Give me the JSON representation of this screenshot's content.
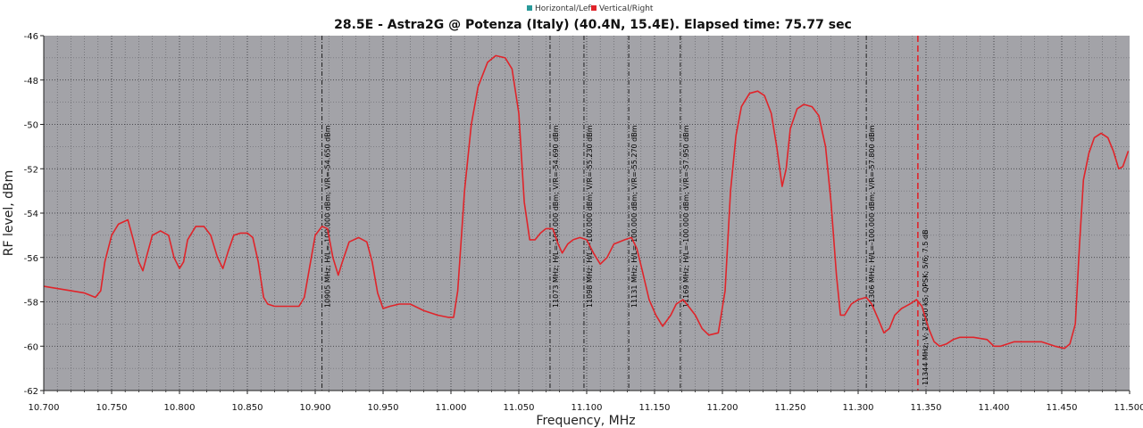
{
  "chart_data": {
    "type": "line",
    "title": "28.5E - Astra2G @ Potenza (Italy) (40.4N, 15.4E). Elapsed time: 75.77 sec",
    "xlabel": "Frequency, MHz",
    "ylabel": "RF level, dBm",
    "xlim": [
      10700,
      11500
    ],
    "ylim": [
      -62,
      -46
    ],
    "x_ticks": [
      "10.700",
      "10.750",
      "10.800",
      "10.850",
      "10.900",
      "10.950",
      "11.000",
      "11.050",
      "11.100",
      "11.150",
      "11.200",
      "11.250",
      "11.300",
      "11.350",
      "11.400",
      "11.450",
      "11.500"
    ],
    "y_ticks": [
      "-46",
      "-48",
      "-50",
      "-52",
      "-54",
      "-56",
      "-58",
      "-60",
      "-62"
    ],
    "grid": true,
    "legend_position": "top-center",
    "legend": [
      {
        "name": "Horizontal/Left",
        "color": "#2a9a9a"
      },
      {
        "name": "Vertical/Right",
        "color": "#e0242a"
      }
    ],
    "plot_background": "#a3a3a8",
    "series": [
      {
        "name": "Vertical/Right",
        "color": "#e0242a",
        "points": [
          [
            10700,
            -57.3
          ],
          [
            10710,
            -57.4
          ],
          [
            10720,
            -57.5
          ],
          [
            10730,
            -57.6
          ],
          [
            10738,
            -57.8
          ],
          [
            10742,
            -57.5
          ],
          [
            10745,
            -56.2
          ],
          [
            10750,
            -55.0
          ],
          [
            10755,
            -54.5
          ],
          [
            10762,
            -54.3
          ],
          [
            10766,
            -55.2
          ],
          [
            10770,
            -56.2
          ],
          [
            10773,
            -56.6
          ],
          [
            10776,
            -55.9
          ],
          [
            10780,
            -55.0
          ],
          [
            10786,
            -54.8
          ],
          [
            10792,
            -55.0
          ],
          [
            10796,
            -56.0
          ],
          [
            10800,
            -56.5
          ],
          [
            10803,
            -56.2
          ],
          [
            10806,
            -55.2
          ],
          [
            10812,
            -54.6
          ],
          [
            10818,
            -54.6
          ],
          [
            10823,
            -55.0
          ],
          [
            10828,
            -56.0
          ],
          [
            10832,
            -56.5
          ],
          [
            10836,
            -55.7
          ],
          [
            10840,
            -55.0
          ],
          [
            10845,
            -54.9
          ],
          [
            10850,
            -54.9
          ],
          [
            10854,
            -55.1
          ],
          [
            10858,
            -56.2
          ],
          [
            10862,
            -57.8
          ],
          [
            10865,
            -58.1
          ],
          [
            10870,
            -58.2
          ],
          [
            10880,
            -58.2
          ],
          [
            10888,
            -58.2
          ],
          [
            10892,
            -57.8
          ],
          [
            10896,
            -56.4
          ],
          [
            10900,
            -55.0
          ],
          [
            10905,
            -54.6
          ],
          [
            10909,
            -54.7
          ],
          [
            10913,
            -56.0
          ],
          [
            10917,
            -56.8
          ],
          [
            10920,
            -56.2
          ],
          [
            10925,
            -55.3
          ],
          [
            10932,
            -55.1
          ],
          [
            10938,
            -55.3
          ],
          [
            10942,
            -56.2
          ],
          [
            10946,
            -57.6
          ],
          [
            10950,
            -58.3
          ],
          [
            10955,
            -58.2
          ],
          [
            10962,
            -58.1
          ],
          [
            10970,
            -58.1
          ],
          [
            10980,
            -58.4
          ],
          [
            10990,
            -58.6
          ],
          [
            10998,
            -58.7
          ],
          [
            11002,
            -58.7
          ],
          [
            11005,
            -57.5
          ],
          [
            11010,
            -53.0
          ],
          [
            11015,
            -50.0
          ],
          [
            11020,
            -48.3
          ],
          [
            11027,
            -47.2
          ],
          [
            11033,
            -46.9
          ],
          [
            11040,
            -47.0
          ],
          [
            11045,
            -47.5
          ],
          [
            11050,
            -49.5
          ],
          [
            11054,
            -53.5
          ],
          [
            11058,
            -55.2
          ],
          [
            11062,
            -55.2
          ],
          [
            11066,
            -54.9
          ],
          [
            11070,
            -54.7
          ],
          [
            11075,
            -54.7
          ],
          [
            11079,
            -55.4
          ],
          [
            11082,
            -55.8
          ],
          [
            11086,
            -55.4
          ],
          [
            11090,
            -55.2
          ],
          [
            11095,
            -55.1
          ],
          [
            11100,
            -55.2
          ],
          [
            11105,
            -55.8
          ],
          [
            11110,
            -56.3
          ],
          [
            11115,
            -56.0
          ],
          [
            11120,
            -55.4
          ],
          [
            11128,
            -55.2
          ],
          [
            11133,
            -55.1
          ],
          [
            11137,
            -55.6
          ],
          [
            11141,
            -56.6
          ],
          [
            11146,
            -57.9
          ],
          [
            11151,
            -58.6
          ],
          [
            11156,
            -59.1
          ],
          [
            11162,
            -58.6
          ],
          [
            11166,
            -58.1
          ],
          [
            11171,
            -57.9
          ],
          [
            11175,
            -58.2
          ],
          [
            11180,
            -58.6
          ],
          [
            11185,
            -59.2
          ],
          [
            11190,
            -59.5
          ],
          [
            11197,
            -59.4
          ],
          [
            11202,
            -57.5
          ],
          [
            11206,
            -53.0
          ],
          [
            11210,
            -50.5
          ],
          [
            11214,
            -49.2
          ],
          [
            11220,
            -48.6
          ],
          [
            11226,
            -48.5
          ],
          [
            11231,
            -48.7
          ],
          [
            11236,
            -49.5
          ],
          [
            11240,
            -51.0
          ],
          [
            11244,
            -52.8
          ],
          [
            11247,
            -52.0
          ],
          [
            11250,
            -50.2
          ],
          [
            11255,
            -49.3
          ],
          [
            11260,
            -49.1
          ],
          [
            11266,
            -49.2
          ],
          [
            11271,
            -49.6
          ],
          [
            11276,
            -51.0
          ],
          [
            11280,
            -53.5
          ],
          [
            11284,
            -56.8
          ],
          [
            11287,
            -58.6
          ],
          [
            11290,
            -58.6
          ],
          [
            11295,
            -58.1
          ],
          [
            11300,
            -57.9
          ],
          [
            11306,
            -57.8
          ],
          [
            11310,
            -58.1
          ],
          [
            11315,
            -58.8
          ],
          [
            11319,
            -59.4
          ],
          [
            11323,
            -59.2
          ],
          [
            11327,
            -58.6
          ],
          [
            11332,
            -58.3
          ],
          [
            11338,
            -58.1
          ],
          [
            11343,
            -57.9
          ],
          [
            11347,
            -58.2
          ],
          [
            11352,
            -59.2
          ],
          [
            11356,
            -59.8
          ],
          [
            11360,
            -60.0
          ],
          [
            11365,
            -59.9
          ],
          [
            11370,
            -59.7
          ],
          [
            11375,
            -59.6
          ],
          [
            11385,
            -59.6
          ],
          [
            11395,
            -59.7
          ],
          [
            11400,
            -60.0
          ],
          [
            11405,
            -60.0
          ],
          [
            11410,
            -59.9
          ],
          [
            11415,
            -59.8
          ],
          [
            11425,
            -59.8
          ],
          [
            11435,
            -59.8
          ],
          [
            11440,
            -59.9
          ],
          [
            11445,
            -60.0
          ],
          [
            11452,
            -60.1
          ],
          [
            11456,
            -59.9
          ],
          [
            11460,
            -59.0
          ],
          [
            11463,
            -55.5
          ],
          [
            11466,
            -52.5
          ],
          [
            11470,
            -51.3
          ],
          [
            11474,
            -50.6
          ],
          [
            11479,
            -50.4
          ],
          [
            11484,
            -50.6
          ],
          [
            11488,
            -51.2
          ],
          [
            11492,
            -52.0
          ],
          [
            11495,
            -51.9
          ],
          [
            11499,
            -51.2
          ]
        ]
      }
    ],
    "markers": [
      {
        "x": 10905,
        "label": "10905 MHz; H/L=-100.000 dBm; V/R=-54.650 dBm"
      },
      {
        "x": 11073,
        "label": "11073 MHz; H/L=-100.000 dBm; V/R=-54.690 dBm"
      },
      {
        "x": 11098,
        "label": "11098 MHz; H/L=-100.000 dBm; V/R=-55.230 dBm"
      },
      {
        "x": 11131,
        "label": "11131 MHz; H/L=-100.000 dBm; V/R=-55.270 dBm"
      },
      {
        "x": 11169,
        "label": "11169 MHz; H/L=-100.000 dBm; V/R=-57.950 dBm"
      },
      {
        "x": 11306,
        "label": "11306 MHz; H/L=-100.000 dBm; V/R=-57.800 dBm"
      }
    ],
    "dashed_marker": {
      "x": 11344,
      "color": "#e0242a",
      "label": "11344 MHz; V; 27500 kS; QPSK; 5/6; 7.5 dB"
    }
  }
}
